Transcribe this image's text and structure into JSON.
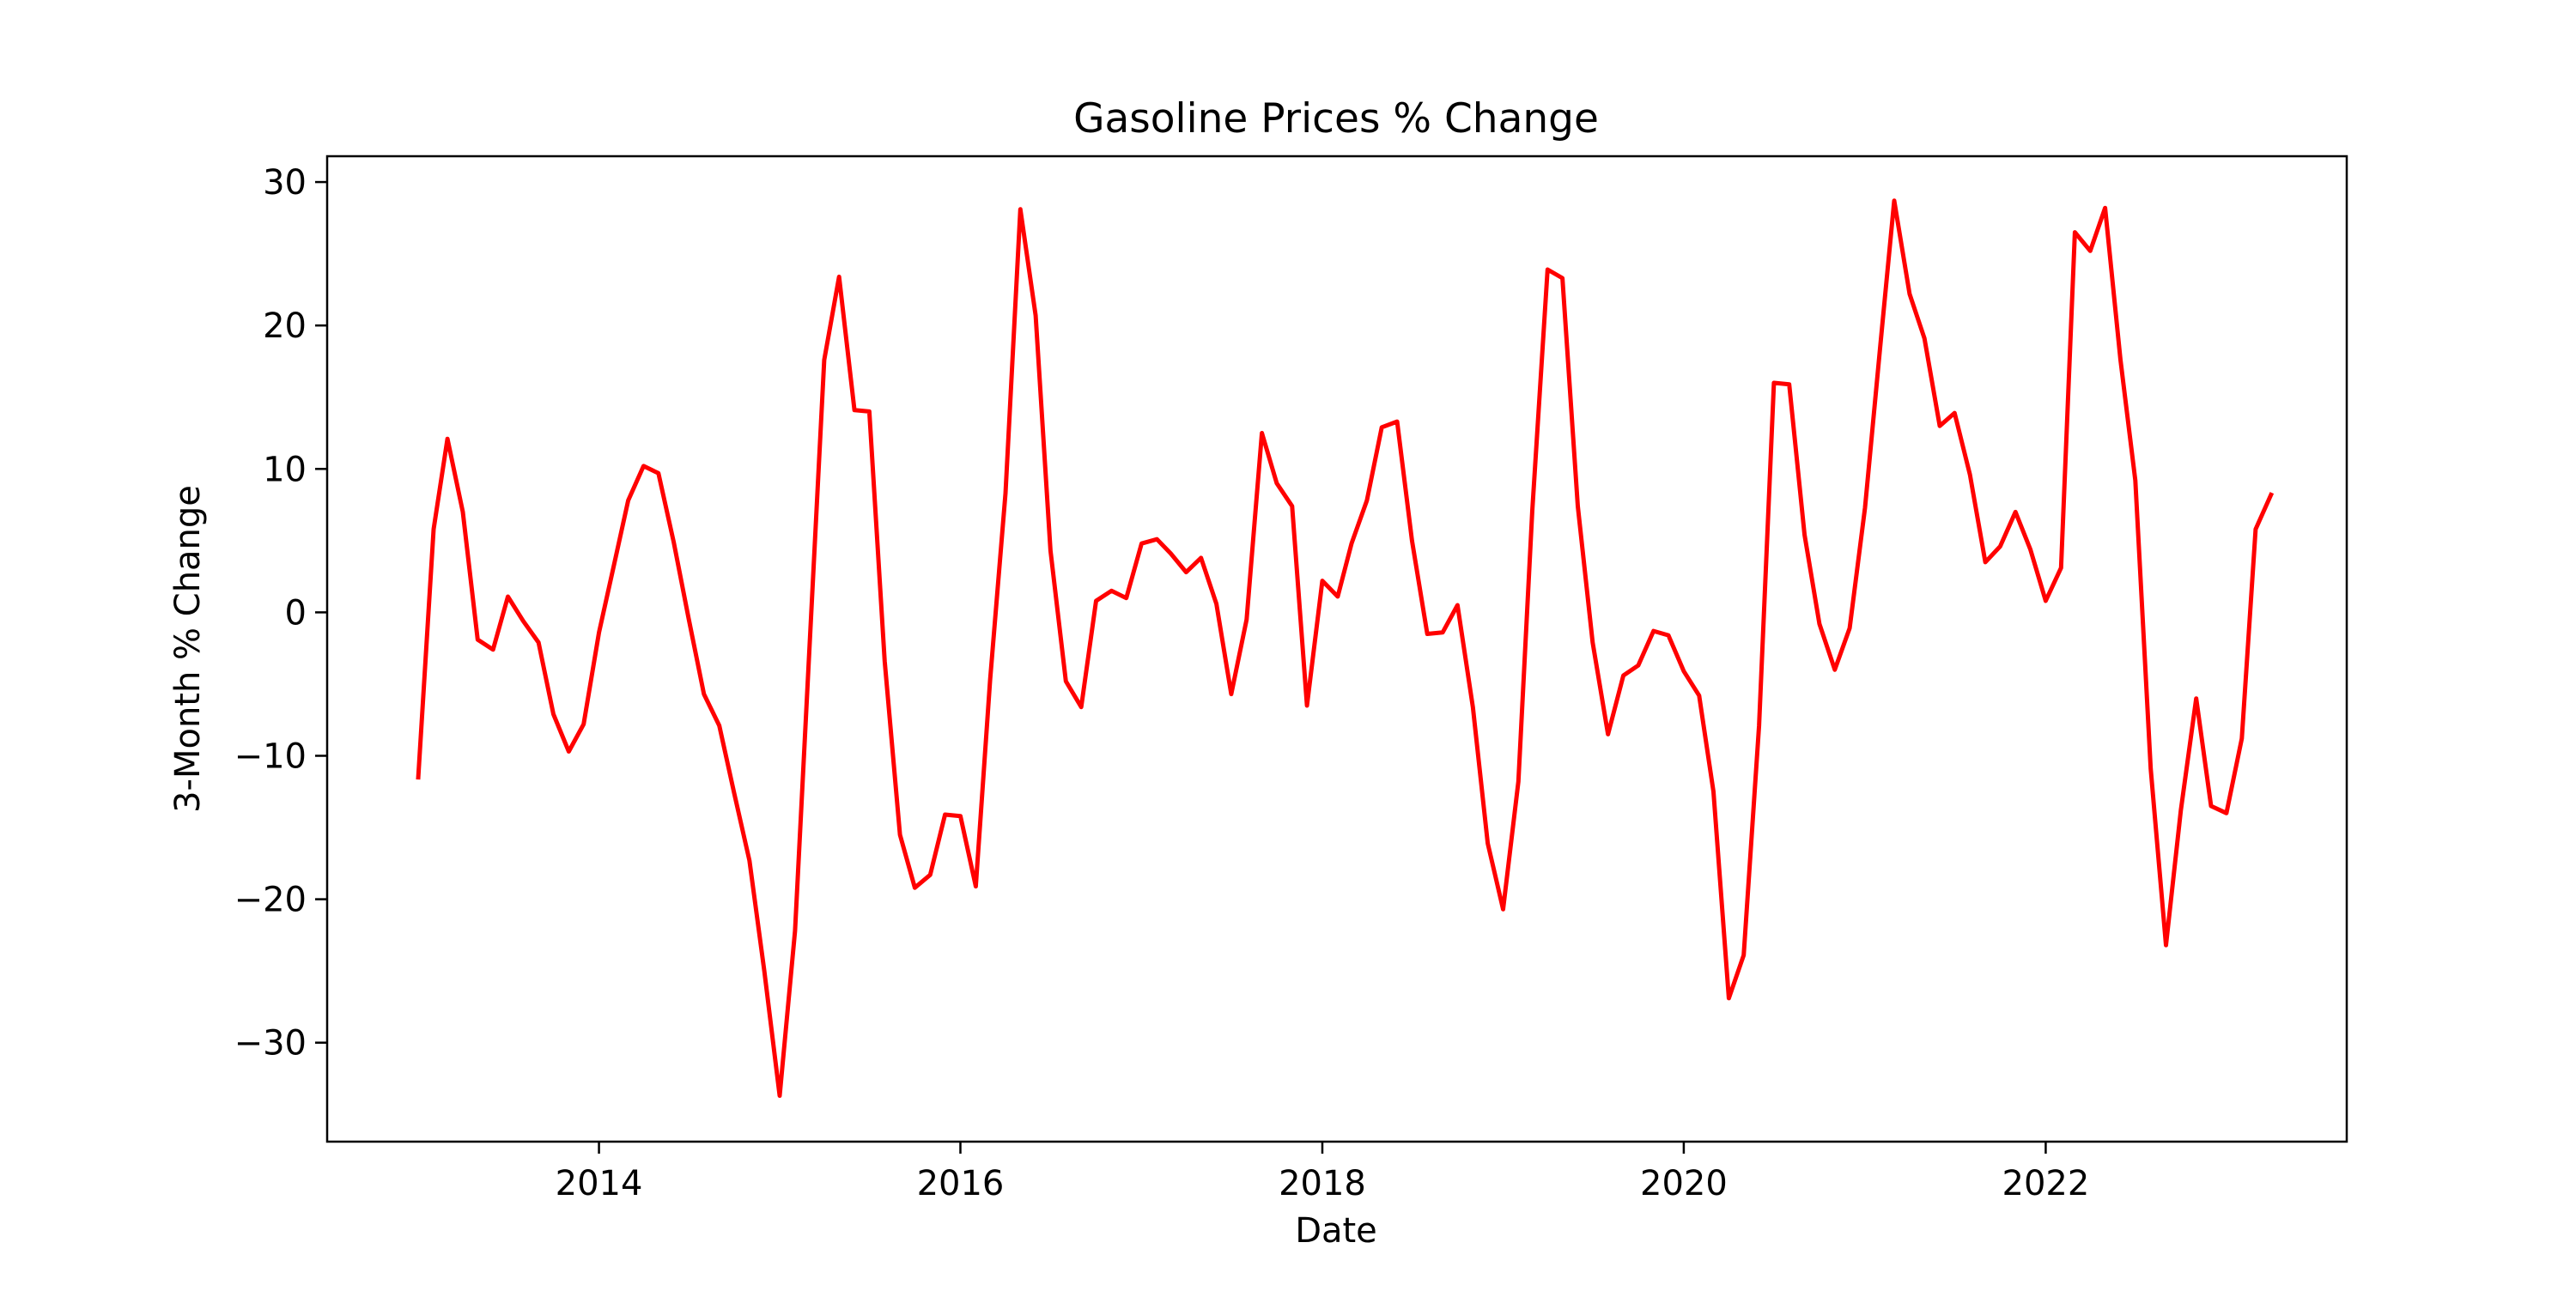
{
  "chart_data": {
    "type": "line",
    "title": "Gasoline Prices % Change",
    "xlabel": "Date",
    "ylabel": "3-Month % Change",
    "x_tick_labels": [
      "2014",
      "2016",
      "2018",
      "2020",
      "2022"
    ],
    "y_tick_labels": [
      "−30",
      "−20",
      "−10",
      "0",
      "10",
      "20",
      "30"
    ],
    "xlim": [
      "2012-07-01",
      "2023-09-01"
    ],
    "ylim": [
      -36.9,
      31.8
    ],
    "grid": false,
    "legend": "none",
    "series": [
      {
        "color": "#ff0000",
        "points": [
          [
            "2013-01-01",
            -11.5
          ],
          [
            "2013-02-01",
            5.8
          ],
          [
            "2013-03-01",
            12.1
          ],
          [
            "2013-04-01",
            7.0
          ],
          [
            "2013-05-01",
            -1.9
          ],
          [
            "2013-06-01",
            -2.6
          ],
          [
            "2013-07-01",
            1.1
          ],
          [
            "2013-08-01",
            -0.6
          ],
          [
            "2013-09-01",
            -2.1
          ],
          [
            "2013-10-01",
            -7.1
          ],
          [
            "2013-11-01",
            -9.7
          ],
          [
            "2013-12-01",
            -7.8
          ],
          [
            "2014-01-01",
            -1.4
          ],
          [
            "2014-02-01",
            3.4
          ],
          [
            "2014-03-01",
            7.8
          ],
          [
            "2014-04-01",
            10.2
          ],
          [
            "2014-05-01",
            9.7
          ],
          [
            "2014-06-01",
            4.9
          ],
          [
            "2014-07-01",
            -0.4
          ],
          [
            "2014-08-01",
            -5.7
          ],
          [
            "2014-09-01",
            -7.9
          ],
          [
            "2014-10-01",
            -12.6
          ],
          [
            "2014-11-01",
            -17.3
          ],
          [
            "2014-12-01",
            -25.0
          ],
          [
            "2015-01-01",
            -33.7
          ],
          [
            "2015-02-01",
            -22.2
          ],
          [
            "2015-03-01",
            -3.3
          ],
          [
            "2015-04-01",
            17.6
          ],
          [
            "2015-05-01",
            23.4
          ],
          [
            "2015-06-01",
            14.1
          ],
          [
            "2015-07-01",
            14.0
          ],
          [
            "2015-08-01",
            -3.4
          ],
          [
            "2015-09-01",
            -15.5
          ],
          [
            "2015-10-01",
            -19.2
          ],
          [
            "2015-11-01",
            -18.3
          ],
          [
            "2015-12-01",
            -14.1
          ],
          [
            "2016-01-01",
            -14.2
          ],
          [
            "2016-02-01",
            -19.1
          ],
          [
            "2016-03-01",
            -4.7
          ],
          [
            "2016-04-01",
            8.3
          ],
          [
            "2016-05-01",
            28.1
          ],
          [
            "2016-06-01",
            20.7
          ],
          [
            "2016-07-01",
            4.3
          ],
          [
            "2016-08-01",
            -4.8
          ],
          [
            "2016-09-01",
            -6.6
          ],
          [
            "2016-10-01",
            0.8
          ],
          [
            "2016-11-01",
            1.5
          ],
          [
            "2016-12-01",
            1.0
          ],
          [
            "2017-01-01",
            4.8
          ],
          [
            "2017-02-01",
            5.1
          ],
          [
            "2017-03-01",
            4.1
          ],
          [
            "2017-04-01",
            2.8
          ],
          [
            "2017-05-01",
            3.8
          ],
          [
            "2017-06-01",
            0.6
          ],
          [
            "2017-07-01",
            -5.7
          ],
          [
            "2017-08-01",
            -0.5
          ],
          [
            "2017-09-01",
            12.5
          ],
          [
            "2017-10-01",
            9.0
          ],
          [
            "2017-11-01",
            7.4
          ],
          [
            "2017-12-01",
            -6.5
          ],
          [
            "2018-01-01",
            2.2
          ],
          [
            "2018-02-01",
            1.1
          ],
          [
            "2018-03-01",
            4.8
          ],
          [
            "2018-04-01",
            7.8
          ],
          [
            "2018-05-01",
            12.9
          ],
          [
            "2018-06-01",
            13.3
          ],
          [
            "2018-07-01",
            5.0
          ],
          [
            "2018-08-01",
            -1.5
          ],
          [
            "2018-09-01",
            -1.4
          ],
          [
            "2018-10-01",
            0.5
          ],
          [
            "2018-11-01",
            -6.6
          ],
          [
            "2018-12-01",
            -16.1
          ],
          [
            "2019-01-01",
            -20.7
          ],
          [
            "2019-02-01",
            -11.8
          ],
          [
            "2019-03-01",
            7.1
          ],
          [
            "2019-04-01",
            23.9
          ],
          [
            "2019-05-01",
            23.3
          ],
          [
            "2019-06-01",
            7.4
          ],
          [
            "2019-07-01",
            -2.1
          ],
          [
            "2019-08-01",
            -8.5
          ],
          [
            "2019-09-01",
            -4.4
          ],
          [
            "2019-10-01",
            -3.7
          ],
          [
            "2019-11-01",
            -1.3
          ],
          [
            "2019-12-01",
            -1.6
          ],
          [
            "2020-01-01",
            -4.1
          ],
          [
            "2020-02-01",
            -5.8
          ],
          [
            "2020-03-01",
            -12.5
          ],
          [
            "2020-04-01",
            -26.9
          ],
          [
            "2020-05-01",
            -23.9
          ],
          [
            "2020-06-01",
            -7.9
          ],
          [
            "2020-07-01",
            16.0
          ],
          [
            "2020-08-01",
            15.9
          ],
          [
            "2020-09-01",
            5.4
          ],
          [
            "2020-10-01",
            -0.8
          ],
          [
            "2020-11-01",
            -4.0
          ],
          [
            "2020-12-01",
            -1.1
          ],
          [
            "2021-01-01",
            7.3
          ],
          [
            "2021-02-01",
            18.6
          ],
          [
            "2021-03-01",
            28.7
          ],
          [
            "2021-04-01",
            22.2
          ],
          [
            "2021-05-01",
            19.1
          ],
          [
            "2021-06-01",
            13.0
          ],
          [
            "2021-07-01",
            13.9
          ],
          [
            "2021-08-01",
            9.6
          ],
          [
            "2021-09-01",
            3.5
          ],
          [
            "2021-10-01",
            4.6
          ],
          [
            "2021-11-01",
            7.0
          ],
          [
            "2021-12-01",
            4.4
          ],
          [
            "2022-01-01",
            0.8
          ],
          [
            "2022-02-01",
            3.1
          ],
          [
            "2022-03-01",
            26.5
          ],
          [
            "2022-04-01",
            25.2
          ],
          [
            "2022-05-01",
            28.2
          ],
          [
            "2022-06-01",
            17.6
          ],
          [
            "2022-07-01",
            9.2
          ],
          [
            "2022-08-01",
            -10.9
          ],
          [
            "2022-09-01",
            -23.2
          ],
          [
            "2022-10-01",
            -13.8
          ],
          [
            "2022-11-01",
            -6.0
          ],
          [
            "2022-12-01",
            -13.5
          ],
          [
            "2023-01-01",
            -14.0
          ],
          [
            "2023-02-01",
            -8.8
          ],
          [
            "2023-03-01",
            5.8
          ],
          [
            "2023-04-01",
            8.2
          ]
        ]
      }
    ]
  }
}
